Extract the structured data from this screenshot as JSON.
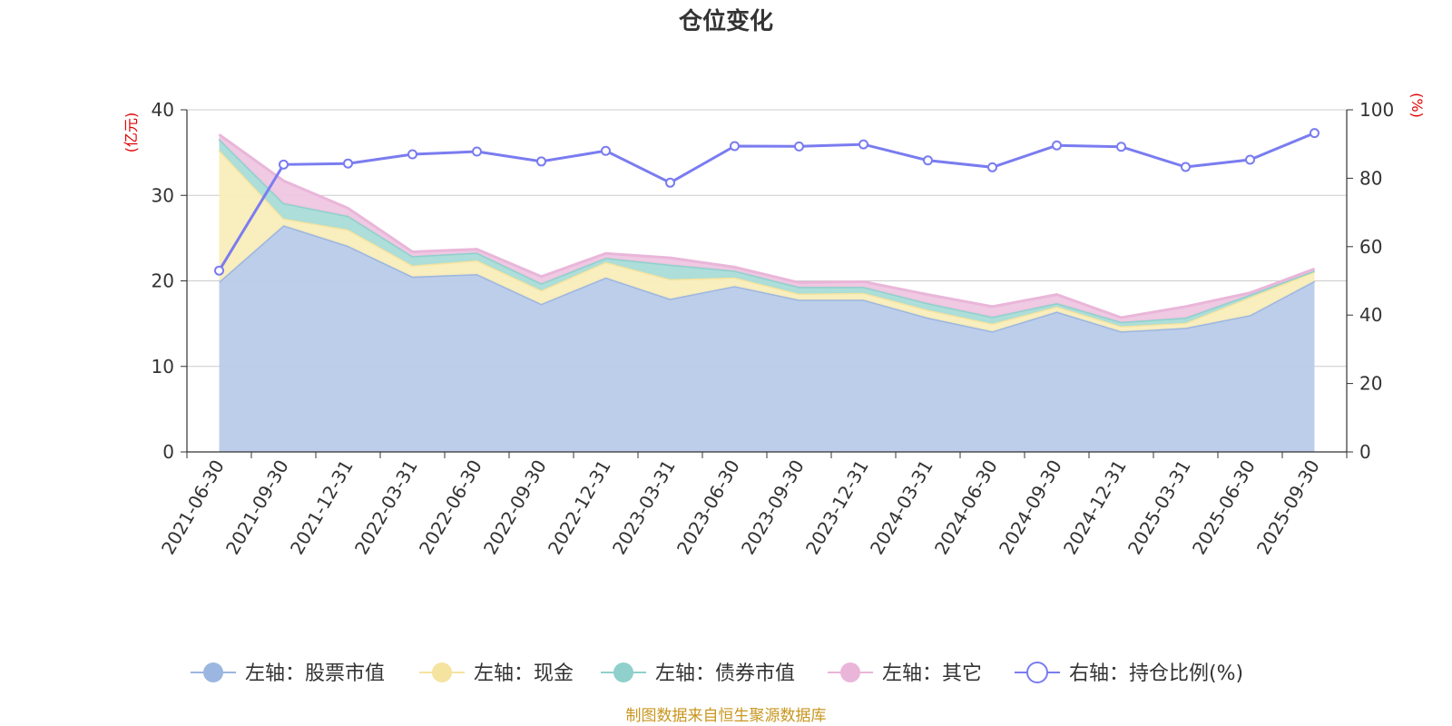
{
  "chart_data": {
    "type": "area",
    "title": "仓位变化",
    "left_unit": "(亿元)",
    "right_unit": "(%)",
    "categories": [
      "2021-06-30",
      "2021-09-30",
      "2021-12-31",
      "2022-03-31",
      "2022-06-30",
      "2022-09-30",
      "2022-12-31",
      "2023-03-31",
      "2023-06-30",
      "2023-09-30",
      "2023-12-31",
      "2024-03-31",
      "2024-06-30",
      "2024-09-30",
      "2024-12-31",
      "2025-03-31",
      "2025-06-30",
      "2025-09-30"
    ],
    "left_ylim": [
      0,
      40
    ],
    "left_ticks": [
      "0",
      "10",
      "20",
      "30",
      "40"
    ],
    "right_ylim": [
      0,
      100
    ],
    "right_ticks": [
      "0",
      "20",
      "40",
      "60",
      "80",
      "100"
    ],
    "stacked_series": [
      {
        "name": "左轴：股票市值",
        "color": "#9bb6e0",
        "fill": "#b9cbe9",
        "values": [
          19.9,
          26.5,
          24.1,
          20.5,
          20.8,
          17.3,
          20.4,
          17.9,
          19.4,
          17.8,
          17.8,
          15.7,
          14.1,
          16.4,
          14.1,
          14.5,
          16.0,
          20.0
        ]
      },
      {
        "name": "左轴：现金",
        "color": "#f5e3a0",
        "fill": "#f9edbb",
        "values": [
          15.4,
          0.8,
          1.9,
          1.3,
          1.6,
          1.6,
          1.8,
          2.3,
          1.0,
          0.7,
          0.8,
          0.9,
          0.9,
          0.6,
          0.6,
          0.6,
          2.1,
          1.1
        ]
      },
      {
        "name": "左轴：债券市值",
        "color": "#8fd0cc",
        "fill": "#a9dcd8",
        "values": [
          1.3,
          1.8,
          1.6,
          1.1,
          0.9,
          0.8,
          0.5,
          1.7,
          0.8,
          0.8,
          0.7,
          0.8,
          0.8,
          0.4,
          0.5,
          0.6,
          0.3,
          0.1
        ]
      },
      {
        "name": "左轴：其它",
        "color": "#e9b6d9",
        "fill": "#efc6e2",
        "values": [
          0.5,
          2.6,
          0.9,
          0.5,
          0.4,
          0.8,
          0.5,
          0.8,
          0.4,
          0.5,
          0.6,
          1.0,
          1.2,
          1.0,
          0.5,
          1.3,
          0.2,
          0.2
        ]
      }
    ],
    "line_series": {
      "name": "右轴：持仓比例(%)",
      "color": "#7a7cf0",
      "values": [
        53.0,
        84.0,
        84.3,
        87.0,
        87.8,
        84.9,
        88.0,
        78.7,
        89.4,
        89.3,
        89.9,
        85.2,
        83.2,
        89.6,
        89.2,
        83.3,
        85.4,
        93.2
      ]
    },
    "legend": [
      "左轴：股票市值",
      "左轴：现金",
      "左轴：债券市值",
      "左轴：其它",
      "右轴：持仓比例(%)"
    ],
    "legend_colors": [
      "#9bb6e0",
      "#f5e3a0",
      "#8fd0cc",
      "#e9b6d9",
      "#7a7cf0"
    ],
    "source": "制图数据来自恒生聚源数据库",
    "grid": true,
    "legend_position": "bottom"
  }
}
